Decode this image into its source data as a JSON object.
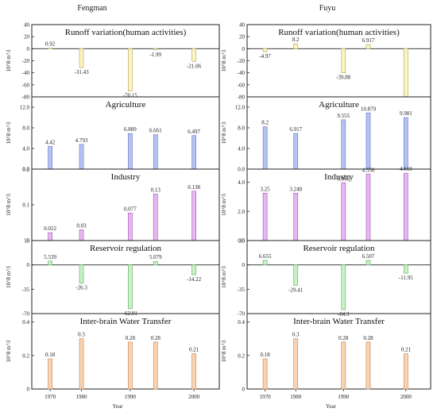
{
  "columns": [
    {
      "station": "Fengman"
    },
    {
      "station": "Fuyu"
    }
  ],
  "unit_label": "10^8 m^3",
  "xlabel": "Year",
  "chart_data": [
    {
      "type": "bar",
      "station": "Fengman",
      "title": "Runoff variation(human activities)",
      "categories": [
        "1970",
        "1980",
        "1990",
        "1995",
        "2000"
      ],
      "values": [
        0.92,
        -31.43,
        -70.15,
        -1.99,
        -21.06
      ],
      "ylim": [
        -80,
        40
      ],
      "yticks": [
        -80,
        -60,
        -40,
        -20,
        0,
        20,
        40
      ],
      "color": "#fdf5c0",
      "stroke": "#b8ae66"
    },
    {
      "type": "bar",
      "station": "Fengman",
      "title": "Agriculture",
      "categories": [
        "1970",
        "1980",
        "1990",
        "1995",
        "2000"
      ],
      "values": [
        4.42,
        4.793,
        6.889,
        6.661,
        6.497
      ],
      "ylim": [
        0,
        14
      ],
      "yticks": [
        0,
        4,
        8,
        12
      ],
      "tick_format": "1dp",
      "color": "#b7c3f3",
      "stroke": "#6f7fc9"
    },
    {
      "type": "bar",
      "station": "Fengman",
      "title": "Industry",
      "categories": [
        "1970",
        "1980",
        "1990",
        "1995",
        "2000"
      ],
      "values": [
        0.022,
        0.03,
        0.077,
        0.13,
        0.138
      ],
      "ylim": [
        0,
        0.2
      ],
      "yticks": [
        0,
        0.1,
        0.2
      ],
      "color": "#e7b8f2",
      "stroke": "#a862bd"
    },
    {
      "type": "bar",
      "station": "Fengman",
      "title": "Reservoir regulation",
      "categories": [
        "1970",
        "1980",
        "1990",
        "1995",
        "2000"
      ],
      "values": [
        5.539,
        -26.3,
        -62.91,
        5.079,
        -14.22
      ],
      "ylim": [
        -70,
        35
      ],
      "yticks": [
        -70,
        -35,
        0,
        35
      ],
      "color": "#c8f2c6",
      "stroke": "#6fb26b"
    },
    {
      "type": "bar",
      "station": "Fengman",
      "title": "Inter-brain Water Transfer",
      "categories": [
        "1970",
        "1980",
        "1990",
        "1995",
        "2000"
      ],
      "values": [
        0.18,
        0.3,
        0.28,
        0.28,
        0.21
      ],
      "ylim": [
        0,
        0.45
      ],
      "yticks": [
        0,
        0.2,
        0.4
      ],
      "color": "#f9d4b4",
      "stroke": "#c98c5c"
    },
    {
      "type": "bar",
      "station": "Fuyu",
      "title": "Runoff variation(human activities)",
      "categories": [
        "1970",
        "1980",
        "1990",
        "1995",
        "2000"
      ],
      "values": [
        -4.97,
        8.2,
        -39.88,
        6.917,
        -79.5
      ],
      "labels": [
        "-4.97",
        "8.2",
        "-39.88",
        "6.917",
        ""
      ],
      "ylim": [
        -80,
        40
      ],
      "yticks": [
        -80,
        -60,
        -40,
        -20,
        0,
        20,
        40
      ],
      "color": "#fdf5c0",
      "stroke": "#b8ae66"
    },
    {
      "type": "bar",
      "station": "Fuyu",
      "title": "Agriculture",
      "categories": [
        "1970",
        "1980",
        "1990",
        "1995",
        "2000"
      ],
      "values": [
        8.2,
        6.917,
        9.555,
        10.879,
        9.981
      ],
      "ylim": [
        0,
        14
      ],
      "yticks": [
        0,
        4,
        8,
        12
      ],
      "tick_format": "1dp",
      "color": "#b7c3f3",
      "stroke": "#6f7fc9"
    },
    {
      "type": "bar",
      "station": "Fuyu",
      "title": "Industry",
      "categories": [
        "1970",
        "1980",
        "1990",
        "1995",
        "2000"
      ],
      "values": [
        3.25,
        3.248,
        3.959,
        4.556,
        4.619
      ],
      "ylim": [
        0,
        4.9
      ],
      "yticks": [
        0,
        2,
        4
      ],
      "tick_format": "1dp",
      "color": "#e7b8f2",
      "stroke": "#a862bd"
    },
    {
      "type": "bar",
      "station": "Fuyu",
      "title": "Reservoir regulation",
      "categories": [
        "1970",
        "1980",
        "1990",
        "1995",
        "2000"
      ],
      "values": [
        6.655,
        -29.41,
        -64.3,
        6.507,
        -11.95
      ],
      "ylim": [
        -70,
        35
      ],
      "yticks": [
        -70,
        -35,
        0,
        35
      ],
      "color": "#c8f2c6",
      "stroke": "#6fb26b"
    },
    {
      "type": "bar",
      "station": "Fuyu",
      "title": "Inter-brain Water Transfer",
      "categories": [
        "1970",
        "1980",
        "1990",
        "1995",
        "2000"
      ],
      "values": [
        0.18,
        0.3,
        0.28,
        0.28,
        0.21
      ],
      "ylim": [
        0,
        0.45
      ],
      "yticks": [
        0,
        0.2,
        0.4
      ],
      "color": "#f9d4b4",
      "stroke": "#c98c5c"
    }
  ],
  "xticks": [
    "1970",
    "1980",
    "1990",
    "2000"
  ]
}
